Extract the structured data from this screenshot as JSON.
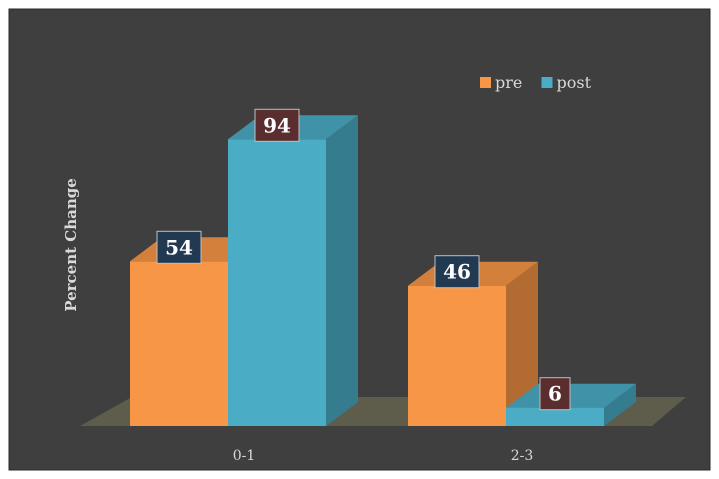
{
  "chart_data": {
    "type": "bar",
    "style": "3d-clustered-column",
    "categories": [
      "0-1",
      "2-3"
    ],
    "series": [
      {
        "name": "pre",
        "values": [
          54,
          46
        ],
        "color": "#F79646"
      },
      {
        "name": "post",
        "values": [
          94,
          6
        ],
        "color": "#4BACC6"
      }
    ],
    "ylabel": "Percent Change",
    "xlabel": "",
    "ylim": [
      0,
      100
    ],
    "grid": false,
    "legend": "top-right",
    "data_labels": true,
    "background_color": "#3F3F3F",
    "floor_color": "#5E5D4C",
    "label_box_colors": [
      "#223952",
      "#5A2E2E"
    ]
  }
}
